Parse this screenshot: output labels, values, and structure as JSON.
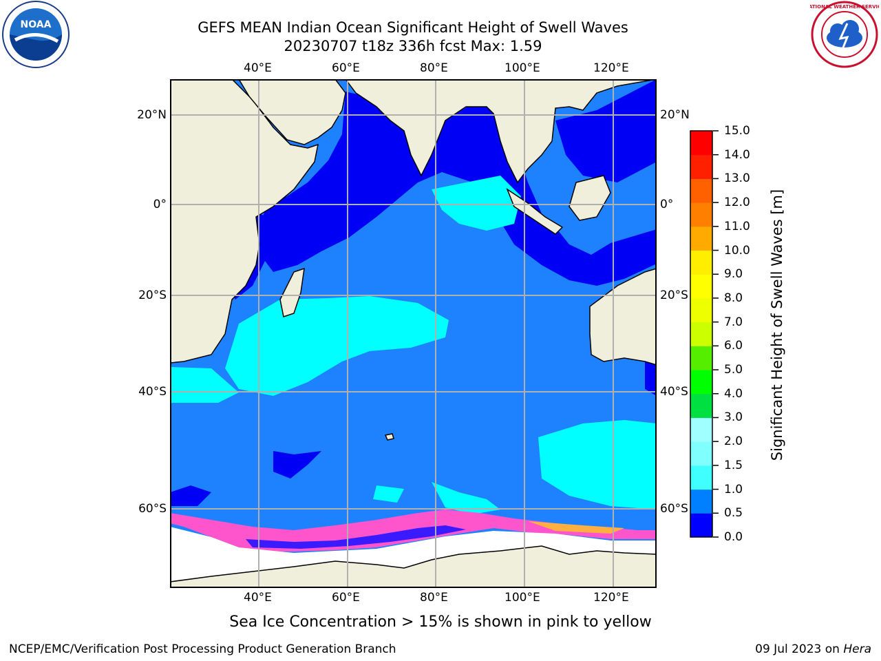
{
  "title": {
    "line1": "GEFS MEAN Indian Ocean Significant Height of Swell Waves",
    "line2": "20230707 t18z 336h fcst   Max: 1.59"
  },
  "logos": {
    "left": {
      "icon": "noaa-logo",
      "text": "NOAA"
    },
    "right": {
      "icon": "national-weather-service-logo",
      "text": "NATIONAL WEATHER SERVICE"
    }
  },
  "axes": {
    "lon_labels": [
      "40°E",
      "60°E",
      "80°E",
      "100°E",
      "120°E"
    ],
    "lat_labels": [
      "20°N",
      "0°",
      "20°S",
      "40°S",
      "60°S"
    ]
  },
  "colorbar": {
    "label": "Significant Height of Swell Waves [m]",
    "ticks": [
      "15.0",
      "14.0",
      "13.0",
      "12.0",
      "11.0",
      "10.0",
      "9.0",
      "8.0",
      "7.0",
      "6.0",
      "5.0",
      "4.0",
      "3.0",
      "2.0",
      "1.5",
      "1.0",
      "0.5",
      "0.0"
    ],
    "colors": [
      "#0000ff",
      "#0080ff",
      "#00ffff",
      "#40ffff",
      "#80ffff",
      "#a0ffff",
      "#55ff80",
      "#00e040",
      "#00ff00",
      "#55ee00",
      "#aaff00",
      "#ccff00",
      "#eeff00",
      "#ffff00",
      "#ffee00",
      "#ffcc00",
      "#ffaa00",
      "#ff8000",
      "#ff6000",
      "#ff4000",
      "#ff2000",
      "#ff0000"
    ]
  },
  "map": {
    "land_color": "#efefdc",
    "ocean_low_color": "#0000f5",
    "ocean_mid_color": "#1e82ff",
    "ocean_high_color": "#00ffff",
    "ice_color": "#ffffff",
    "ice_edge_color": "#ff55cc"
  },
  "caption": "Sea Ice Concentration > 15% is shown in pink to yellow",
  "footer": {
    "left": "NCEP/EMC/Verification Post Processing Product Generation Branch",
    "right_date": "09 Jul 2023 on ",
    "right_host": "Hera"
  }
}
